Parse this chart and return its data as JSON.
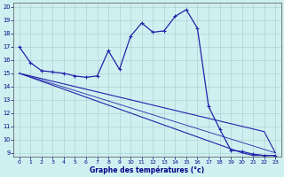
{
  "xlabel": "Graphe des températures (°c)",
  "bg_color": "#cff0f0",
  "line_color": "#2222aa",
  "x_ticks": [
    0,
    1,
    2,
    3,
    4,
    5,
    6,
    7,
    8,
    9,
    10,
    11,
    12,
    13,
    14,
    15,
    16,
    17,
    18,
    19,
    20,
    21,
    22,
    23
  ],
  "ylim": [
    9,
    20
  ],
  "yticks": [
    9,
    10,
    11,
    12,
    13,
    14,
    15,
    16,
    17,
    18,
    19,
    20
  ],
  "line1": {
    "x": [
      0,
      1,
      2,
      3,
      4,
      5,
      6,
      7,
      8,
      9,
      10,
      11,
      12,
      13,
      14,
      15,
      16,
      17,
      18,
      19,
      20,
      21,
      22,
      23
    ],
    "y": [
      17.0,
      15.8,
      15.2,
      15.1,
      15.0,
      14.8,
      14.7,
      14.8,
      16.7,
      15.3,
      17.8,
      18.8,
      18.1,
      18.2,
      19.3,
      19.8,
      18.4,
      12.5,
      10.8,
      9.2,
      9.1,
      8.9,
      8.8,
      8.8
    ]
  },
  "line2": {
    "x": [
      0,
      1,
      2,
      3,
      4,
      5,
      6,
      7,
      8,
      9,
      10,
      11,
      12,
      13,
      14,
      15,
      16,
      17,
      18,
      19,
      20,
      21,
      22,
      23
    ],
    "y": [
      15.0,
      14.8,
      14.6,
      14.4,
      14.2,
      14.0,
      13.8,
      13.6,
      13.4,
      13.2,
      13.0,
      12.8,
      12.6,
      12.4,
      12.2,
      12.0,
      11.8,
      11.6,
      11.4,
      11.2,
      11.0,
      10.8,
      10.6,
      9.0
    ]
  },
  "line3": {
    "x": [
      0,
      1,
      2,
      3,
      4,
      5,
      6,
      7,
      8,
      9,
      10,
      11,
      12,
      13,
      14,
      15,
      16,
      17,
      18,
      19,
      20,
      21,
      22,
      23
    ],
    "y": [
      15.0,
      14.7,
      14.4,
      14.1,
      13.8,
      13.5,
      13.2,
      12.9,
      12.6,
      12.3,
      12.0,
      11.7,
      11.4,
      11.1,
      10.8,
      10.5,
      10.2,
      9.9,
      9.6,
      9.3,
      9.0,
      8.8,
      8.8,
      8.8
    ]
  },
  "line4": {
    "x": [
      0,
      23
    ],
    "y": [
      15.0,
      9.0
    ]
  }
}
